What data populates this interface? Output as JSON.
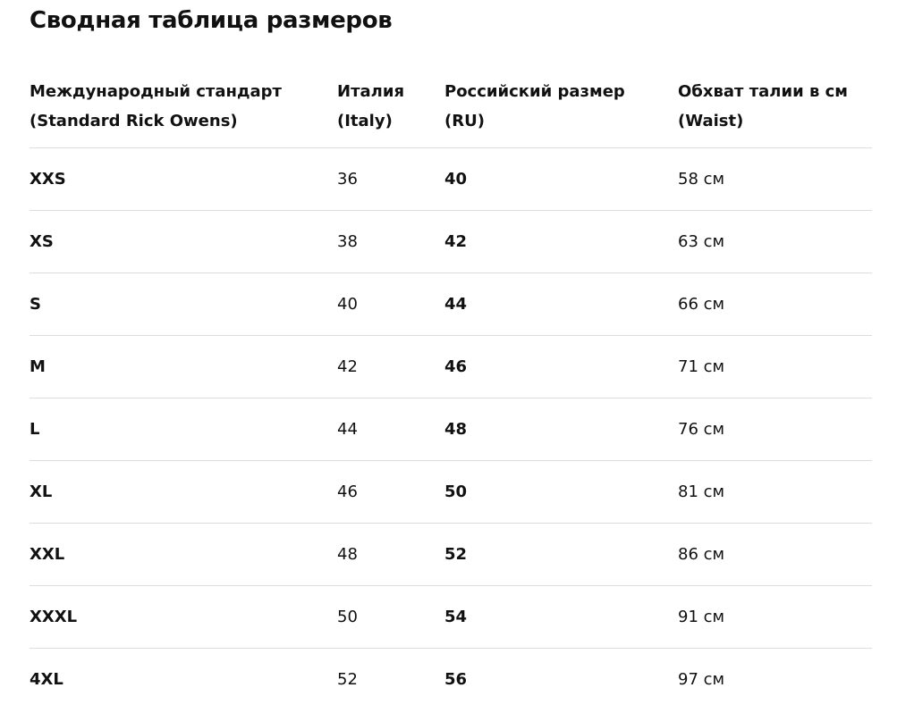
{
  "title": "Сводная таблица размеров",
  "table": {
    "header": [
      [
        "Международный стандарт",
        "(Standard Rick Owens)"
      ],
      [
        "Италия",
        "(Italy)"
      ],
      [
        "Российский размер",
        "(RU)"
      ],
      [
        "Обхват талии в см",
        "(Waist)"
      ]
    ],
    "rows": [
      [
        "XXS",
        "36",
        "40",
        "58 см"
      ],
      [
        "XS",
        "38",
        "42",
        "63 см"
      ],
      [
        "S",
        "40",
        "44",
        "66 см"
      ],
      [
        "M",
        "42",
        "46",
        "71 см"
      ],
      [
        "L",
        "44",
        "48",
        "76 см"
      ],
      [
        "XL",
        "46",
        "50",
        "81 см"
      ],
      [
        "XXL",
        "48",
        "52",
        "86 см"
      ],
      [
        "XXXL",
        "50",
        "54",
        "91 см"
      ],
      [
        "4XL",
        "52",
        "56",
        "97 см"
      ]
    ]
  }
}
